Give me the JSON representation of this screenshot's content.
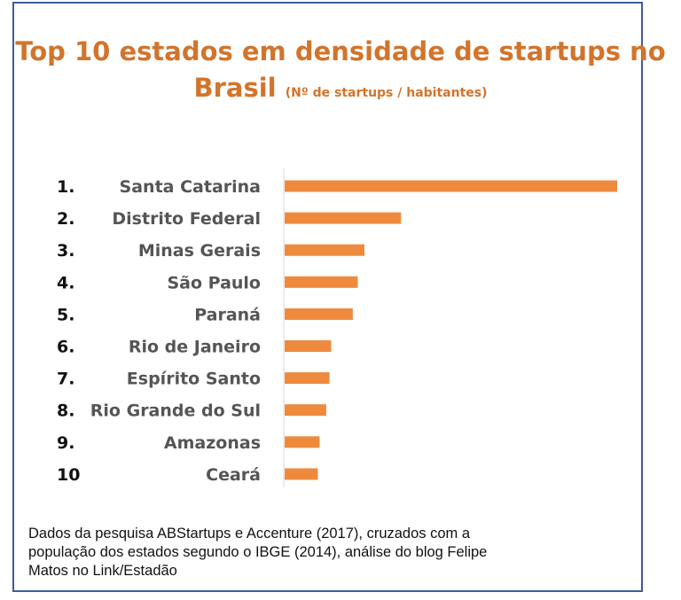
{
  "title": {
    "line1": "Top 10 estados em densidade de startups no",
    "line2": "Brasil",
    "subtitle": "(Nº de startups / habitantes)"
  },
  "chart_data": {
    "type": "bar",
    "orientation": "horizontal",
    "bar_color": "#ee8a3e",
    "ranks": [
      "1.",
      "2.",
      "3.",
      "4.",
      "5.",
      "6.",
      "7.",
      "8.",
      "9.",
      "10"
    ],
    "categories": [
      "Santa Catarina",
      "Distrito Federal",
      "Minas Gerais",
      "São Paulo",
      "Paraná",
      "Rio de Janeiro",
      "Espírito Santo",
      "Rio Grande do Sul",
      "Amazonas",
      "Ceará"
    ],
    "values": [
      100,
      35,
      24,
      22,
      20.5,
      14,
      13.5,
      12.5,
      10.5,
      10
    ],
    "xlim": [
      0,
      100
    ],
    "value_axis_labels": "none",
    "grid": false,
    "legend": "none"
  },
  "caption": {
    "lines": [
      "Dados da pesquisa ABStartups e Accenture (2017), cruzados com a",
      "população dos estados segundo o IBGE (2014), análise do blog Felipe",
      "Matos no Link/Estadão"
    ]
  }
}
